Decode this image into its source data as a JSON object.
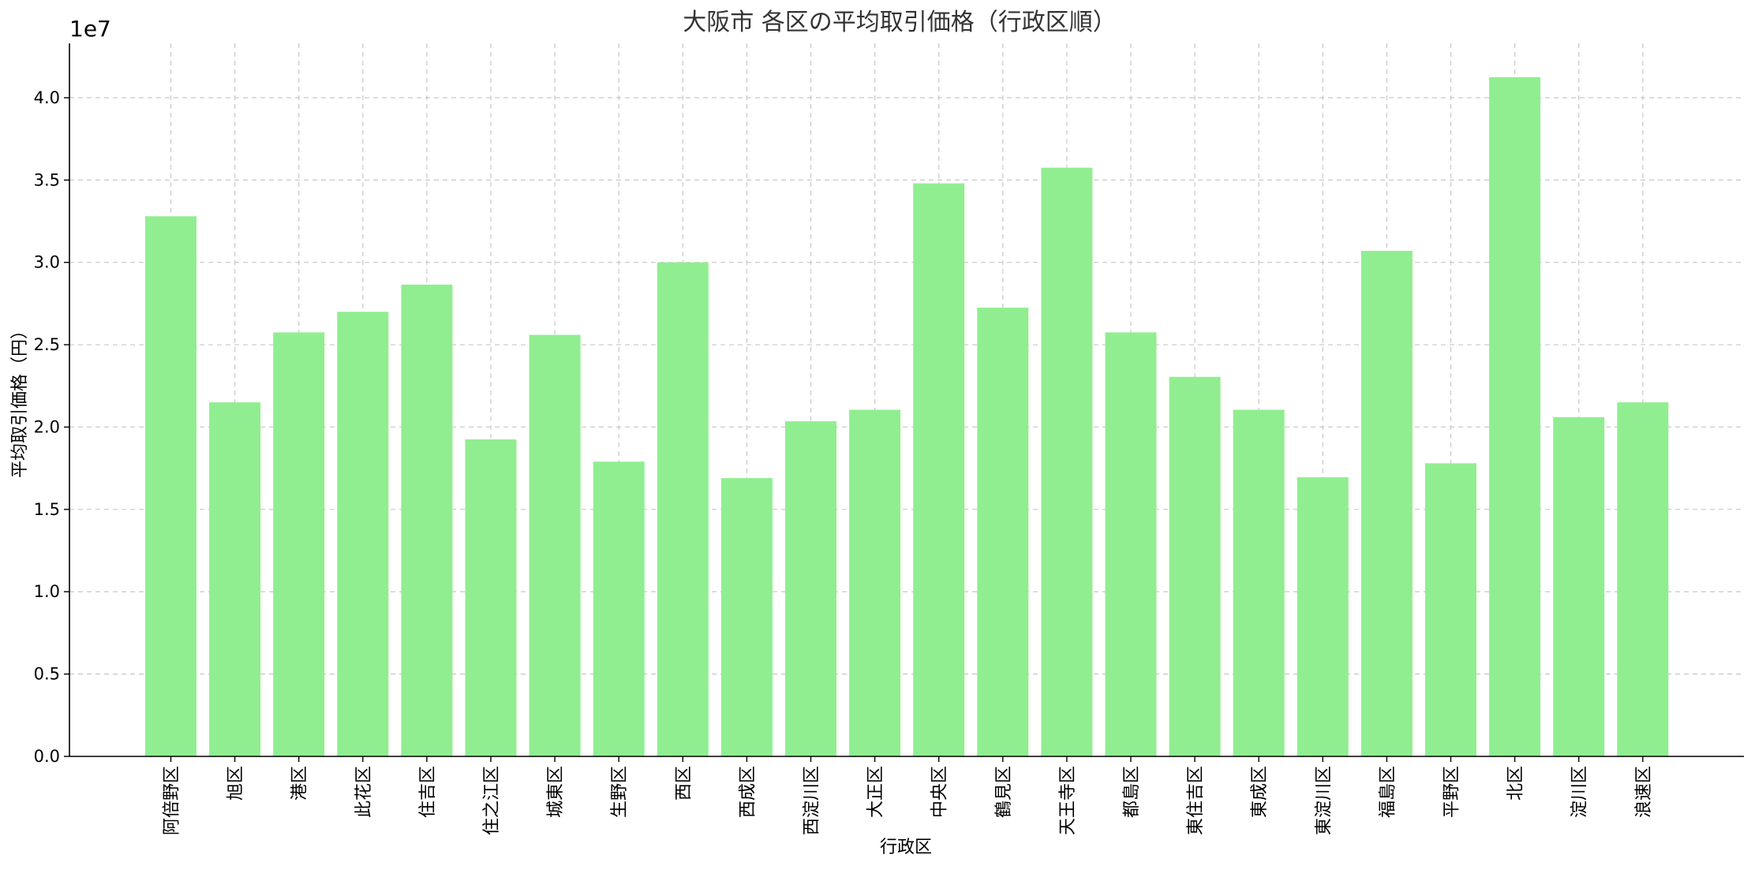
{
  "chart_data": {
    "type": "bar",
    "title": "大阪市 各区の平均取引価格（行政区順）",
    "xlabel": "行政区",
    "ylabel": "平均取引価格（円）",
    "y_offset_label": "1e7",
    "ylim": [
      0,
      43300000
    ],
    "yticks": [
      0,
      5000000,
      10000000,
      15000000,
      20000000,
      25000000,
      30000000,
      35000000,
      40000000
    ],
    "ytick_labels": [
      "0.0",
      "0.5",
      "1.0",
      "1.5",
      "2.0",
      "2.5",
      "3.0",
      "3.5",
      "4.0"
    ],
    "grid": true,
    "bar_color": "#90ee90",
    "categories": [
      "阿倍野区",
      "旭区",
      "港区",
      "此花区",
      "住吉区",
      "住之江区",
      "城東区",
      "生野区",
      "西区",
      "西成区",
      "西淀川区",
      "大正区",
      "中央区",
      "鶴見区",
      "天王寺区",
      "都島区",
      "東住吉区",
      "東成区",
      "東淀川区",
      "福島区",
      "平野区",
      "北区",
      "淀川区",
      "浪速区"
    ],
    "values": [
      32800000,
      21500000,
      25750000,
      27000000,
      28650000,
      19250000,
      25600000,
      17900000,
      30000000,
      16900000,
      20350000,
      21050000,
      34800000,
      27250000,
      35750000,
      25750000,
      23050000,
      21050000,
      16950000,
      30700000,
      17800000,
      41250000,
      20600000,
      21500000
    ]
  }
}
